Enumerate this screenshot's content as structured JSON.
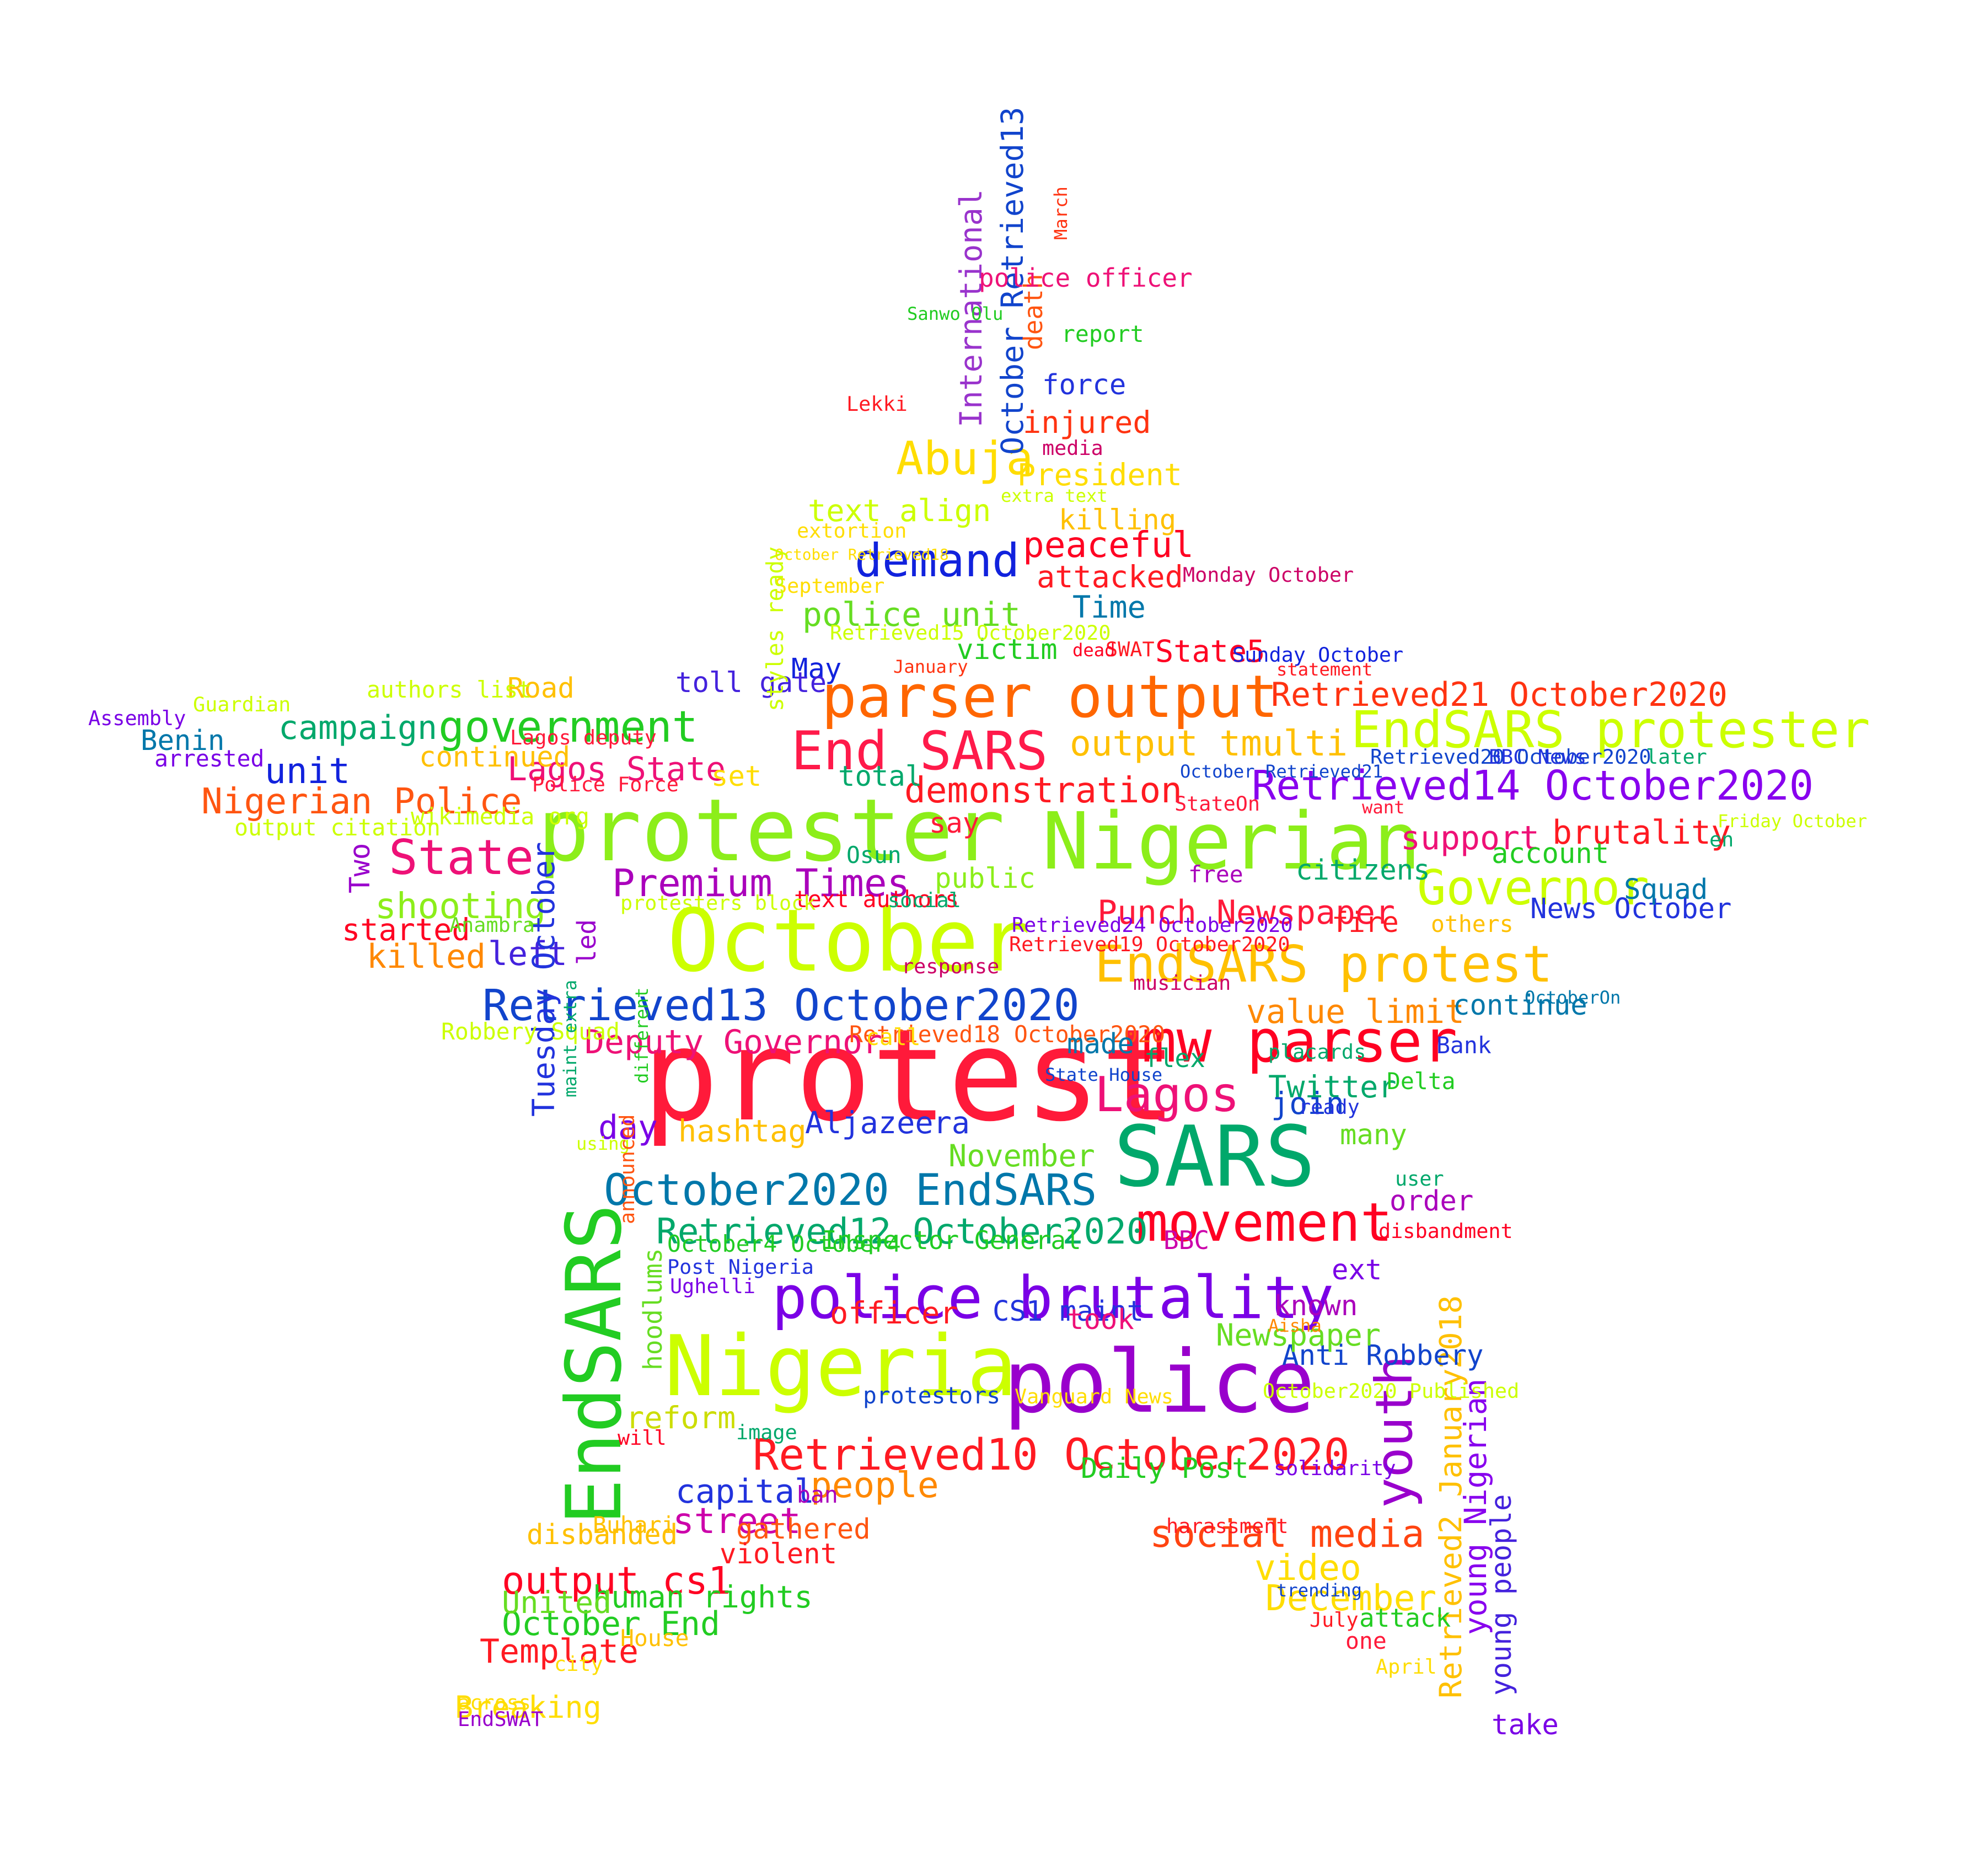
{
  "words": [
    {
      "text": "protest",
      "color": "#ff1a3a"
    },
    {
      "text": "protester",
      "color": "#8cee1a"
    },
    {
      "text": "October",
      "color": "#ccff00"
    },
    {
      "text": "Nigerian",
      "color": "#8cee1a"
    },
    {
      "text": "SARS",
      "color": "#00a86b"
    },
    {
      "text": "Nigeria",
      "color": "#ccff00"
    },
    {
      "text": "police",
      "color": "#9900cc"
    },
    {
      "text": "EndSARS",
      "color": "#22cc22"
    },
    {
      "text": "parser output",
      "color": "#ff6600"
    },
    {
      "text": "mw parser",
      "color": "#ff0022"
    },
    {
      "text": "police brutality",
      "color": "#7a00e6"
    },
    {
      "text": "End SARS",
      "color": "#ff1a4a"
    },
    {
      "text": "EndSARS protester",
      "color": "#ccff00"
    },
    {
      "text": "EndSARS protest",
      "color": "#ffc000"
    },
    {
      "text": "movement",
      "color": "#ff0022"
    },
    {
      "text": "Retrieved13 October2020",
      "color": "#1144cc"
    },
    {
      "text": "Retrieved10 October2020",
      "color": "#ff1a22"
    },
    {
      "text": "Retrieved14 October2020",
      "color": "#8800ee"
    },
    {
      "text": "government",
      "color": "#22cc22"
    },
    {
      "text": "State",
      "color": "#ee1177"
    },
    {
      "text": "demand",
      "color": "#1122dd"
    },
    {
      "text": "Lagos",
      "color": "#ee1177"
    },
    {
      "text": "Governor",
      "color": "#ccff00"
    },
    {
      "text": "youth",
      "color": "#9900cc"
    },
    {
      "text": "October2020 EndSARS",
      "color": "#0077aa"
    },
    {
      "text": "Retrieved12 October2020",
      "color": "#00a86b"
    },
    {
      "text": "Abuja",
      "color": "#ffdd00"
    },
    {
      "text": "output tmulti",
      "color": "#ffc000"
    },
    {
      "text": "Nigerian Police",
      "color": "#ff5511"
    },
    {
      "text": "Premium Times",
      "color": "#aa00bb"
    },
    {
      "text": "Punch Newspaper",
      "color": "#ff1a3a"
    },
    {
      "text": "output cs1",
      "color": "#ff0022"
    },
    {
      "text": "people",
      "color": "#ff8800"
    },
    {
      "text": "capital",
      "color": "#2233dd"
    },
    {
      "text": "street",
      "color": "#cc00aa"
    },
    {
      "text": "social media",
      "color": "#ff4411"
    },
    {
      "text": "video",
      "color": "#ffdd00"
    },
    {
      "text": "December",
      "color": "#ffdd00"
    },
    {
      "text": "Retrieved2 January2018",
      "color": "#ffc000"
    },
    {
      "text": "young Nigerian",
      "color": "#8800ee"
    },
    {
      "text": "young people",
      "color": "#4422dd"
    },
    {
      "text": "Retrieved21 October2020",
      "color": "#ff3311"
    },
    {
      "text": "demonstration",
      "color": "#ff1a22"
    },
    {
      "text": "brutality",
      "color": "#ff1a22"
    },
    {
      "text": "support",
      "color": "#ee1177"
    },
    {
      "text": "shooting",
      "color": "#8cee1a"
    },
    {
      "text": "campaign",
      "color": "#00a86b"
    },
    {
      "text": "unit",
      "color": "#1122dd"
    },
    {
      "text": "Lagos State",
      "color": "#ee1177"
    },
    {
      "text": "peaceful",
      "color": "#ff0022"
    },
    {
      "text": "attacked",
      "color": "#ff1a22"
    },
    {
      "text": "police unit",
      "color": "#66dd22"
    },
    {
      "text": "text align",
      "color": "#ccff00"
    },
    {
      "text": "International",
      "color": "#9933cc"
    },
    {
      "text": "October Retrieved13",
      "color": "#1144cc"
    },
    {
      "text": "Deputy Governor",
      "color": "#ee1177"
    },
    {
      "text": "Retrieved18 October2020",
      "color": "#ff5511"
    },
    {
      "text": "value limit",
      "color": "#ff8800"
    },
    {
      "text": "Twitter",
      "color": "#00a86b"
    },
    {
      "text": "hashtag",
      "color": "#ffc000"
    },
    {
      "text": "Aljazeera",
      "color": "#2233dd"
    },
    {
      "text": "November",
      "color": "#66dd22"
    },
    {
      "text": "day",
      "color": "#7a00e6"
    },
    {
      "text": "killed",
      "color": "#ff8800"
    },
    {
      "text": "left",
      "color": "#4422dd"
    },
    {
      "text": "started",
      "color": "#ff0022"
    },
    {
      "text": "Template",
      "color": "#ff1a22"
    },
    {
      "text": "October End",
      "color": "#22cc22"
    },
    {
      "text": "human rights",
      "color": "#22cc22"
    },
    {
      "text": "United",
      "color": "#66dd22"
    },
    {
      "text": "Breaking",
      "color": "#ffdd00"
    },
    {
      "text": "reform",
      "color": "#ccdd00"
    },
    {
      "text": "hoodlums",
      "color": "#66dd22"
    },
    {
      "text": "Tuesday October",
      "color": "#2233dd"
    },
    {
      "text": "Time",
      "color": "#0077aa"
    },
    {
      "text": "killing",
      "color": "#ffc000"
    },
    {
      "text": "President",
      "color": "#ffdd00"
    },
    {
      "text": "injured",
      "color": "#ff3311"
    },
    {
      "text": "force",
      "color": "#2233dd"
    },
    {
      "text": "report",
      "color": "#22cc22"
    },
    {
      "text": "death",
      "color": "#ff5511"
    },
    {
      "text": "police officer",
      "color": "#ee1177"
    },
    {
      "text": "May",
      "color": "#1122dd"
    },
    {
      "text": "victim",
      "color": "#22cc22"
    },
    {
      "text": "State5",
      "color": "#ff0022"
    },
    {
      "text": "Road",
      "color": "#ffc000"
    },
    {
      "text": "toll gate",
      "color": "#4422dd"
    },
    {
      "text": "Benin",
      "color": "#0077aa"
    },
    {
      "text": "continued",
      "color": "#ffc000"
    },
    {
      "text": "Two",
      "color": "#9900cc"
    },
    {
      "text": "set",
      "color": "#ffdd00"
    },
    {
      "text": "total",
      "color": "#00a86b"
    },
    {
      "text": "say",
      "color": "#ff1a3a"
    },
    {
      "text": "public",
      "color": "#8cee1a"
    },
    {
      "text": "citizens",
      "color": "#00a86b"
    },
    {
      "text": "account",
      "color": "#22cc22"
    },
    {
      "text": "News October",
      "color": "#2233dd"
    },
    {
      "text": "Squad",
      "color": "#0077aa"
    },
    {
      "text": "fire",
      "color": "#ff1a22"
    },
    {
      "text": "others",
      "color": "#ffc000"
    },
    {
      "text": "continue",
      "color": "#0077aa"
    },
    {
      "text": "Bank",
      "color": "#2233dd"
    },
    {
      "text": "Delta",
      "color": "#22cc22"
    },
    {
      "text": "made",
      "color": "#0077aa"
    },
    {
      "text": "join",
      "color": "#1144cc"
    },
    {
      "text": "many",
      "color": "#66dd22"
    },
    {
      "text": "ready",
      "color": "#2233dd"
    },
    {
      "text": "Anti Robbery",
      "color": "#1144cc"
    },
    {
      "text": "Newspaper",
      "color": "#66dd22"
    },
    {
      "text": "known",
      "color": "#aa00bb"
    },
    {
      "text": "CS1 maint",
      "color": "#2233dd"
    },
    {
      "text": "took",
      "color": "#ee1177"
    },
    {
      "text": "officer",
      "color": "#ff1a22"
    },
    {
      "text": "ext",
      "color": "#7a00e6"
    },
    {
      "text": "order",
      "color": "#aa00bb"
    },
    {
      "text": "user",
      "color": "#00a86b"
    },
    {
      "text": "BBC",
      "color": "#cc00aa"
    },
    {
      "text": "Inspector General",
      "color": "#22cc22"
    },
    {
      "text": "October4 October4",
      "color": "#22cc22"
    },
    {
      "text": "Post Nigeria",
      "color": "#2233dd"
    },
    {
      "text": "Ughelli",
      "color": "#7a00e6"
    },
    {
      "text": "gathered",
      "color": "#ff5511"
    },
    {
      "text": "violent",
      "color": "#ff1a22"
    },
    {
      "text": "Buhari",
      "color": "#ffc000"
    },
    {
      "text": "disbanded",
      "color": "#ffc000"
    },
    {
      "text": "ban",
      "color": "#aa00bb"
    },
    {
      "text": "Daily Post",
      "color": "#22cc22"
    },
    {
      "text": "protestors",
      "color": "#1144cc"
    },
    {
      "text": "attack",
      "color": "#22cc22"
    },
    {
      "text": "take",
      "color": "#7a00e6"
    },
    {
      "text": "House",
      "color": "#ffc000"
    },
    {
      "text": "Lekki",
      "color": "#ff1a22"
    },
    {
      "text": "Sanwo Olu",
      "color": "#22cc22"
    },
    {
      "text": "March",
      "color": "#ff3311"
    },
    {
      "text": "media",
      "color": "#cc0066"
    },
    {
      "text": "extra text",
      "color": "#ccff00"
    },
    {
      "text": "extortion",
      "color": "#ffdd00"
    },
    {
      "text": "October Retrieved18",
      "color": "#ffdd00"
    },
    {
      "text": "September",
      "color": "#ffdd00"
    },
    {
      "text": "Retrieved15 October2020",
      "color": "#ccff00"
    },
    {
      "text": "styles ready",
      "color": "#ccff00"
    },
    {
      "text": "Monday October",
      "color": "#cc0066"
    },
    {
      "text": "SWAT",
      "color": "#ff1a22"
    },
    {
      "text": "dead",
      "color": "#ff0022"
    },
    {
      "text": "January",
      "color": "#ff3311"
    },
    {
      "text": "Sunday October",
      "color": "#1122dd"
    },
    {
      "text": "statement",
      "color": "#ff1a22"
    },
    {
      "text": "Retrieved20 October2020",
      "color": "#1144cc"
    },
    {
      "text": "BBC News",
      "color": "#2233dd"
    },
    {
      "text": "later",
      "color": "#00a86b"
    },
    {
      "text": "October Retrieved21",
      "color": "#1144cc"
    },
    {
      "text": "StateOn",
      "color": "#ff1a3a"
    },
    {
      "text": "want",
      "color": "#ff1a3a"
    },
    {
      "text": "Friday October",
      "color": "#ccff00"
    },
    {
      "text": "en",
      "color": "#00a86b"
    },
    {
      "text": "free",
      "color": "#aa00bb"
    },
    {
      "text": "Osun",
      "color": "#00a86b"
    },
    {
      "text": "text authors",
      "color": "#ff0022"
    },
    {
      "text": "social",
      "color": "#00a86b"
    },
    {
      "text": "protesters block",
      "color": "#ccff00"
    },
    {
      "text": "led",
      "color": "#9900cc"
    },
    {
      "text": "Anambra",
      "color": "#66dd22"
    },
    {
      "text": "wikimedia org",
      "color": "#ccff00"
    },
    {
      "text": "Police Force",
      "color": "#ff1a3a"
    },
    {
      "text": "output citation",
      "color": "#ccff00"
    },
    {
      "text": "arrested",
      "color": "#7a00e6"
    },
    {
      "text": "Assembly",
      "color": "#7a00e6"
    },
    {
      "text": "Guardian",
      "color": "#ccff00"
    },
    {
      "text": "authors list",
      "color": "#ccff00"
    },
    {
      "text": "Lagos deputy",
      "color": "#ff1a3a"
    },
    {
      "text": "Retrieved24 October2020",
      "color": "#7a00e6"
    },
    {
      "text": "Retrieved19 October2020",
      "color": "#ff1a22"
    },
    {
      "text": "response",
      "color": "#cc0066"
    },
    {
      "text": "musician",
      "color": "#cc0066"
    },
    {
      "text": "OctoberOn",
      "color": "#0077aa"
    },
    {
      "text": "call",
      "color": "#ffdd00"
    },
    {
      "text": "Robbery Squad",
      "color": "#ccff00"
    },
    {
      "text": "maint extra",
      "color": "#00a86b"
    },
    {
      "text": "different",
      "color": "#22cc22"
    },
    {
      "text": "using",
      "color": "#ccff00"
    },
    {
      "text": "State House",
      "color": "#1144cc"
    },
    {
      "text": "flex",
      "color": "#00a86b"
    },
    {
      "text": "placards",
      "color": "#00a86b"
    },
    {
      "text": "announced",
      "color": "#ff5511"
    },
    {
      "text": "disbandment",
      "color": "#ff0022"
    },
    {
      "text": "Aisha",
      "color": "#ff8800"
    },
    {
      "text": "Vanguard News",
      "color": "#ffdd00"
    },
    {
      "text": "October2020 Published",
      "color": "#ccff00"
    },
    {
      "text": "solidarity",
      "color": "#7a00e6"
    },
    {
      "text": "harassment",
      "color": "#ff1a22"
    },
    {
      "text": "trending",
      "color": "#1144cc"
    },
    {
      "text": "July",
      "color": "#ff1a22"
    },
    {
      "text": "one",
      "color": "#ff1a3a"
    },
    {
      "text": "April",
      "color": "#ffdd00"
    },
    {
      "text": "will",
      "color": "#ff0022"
    },
    {
      "text": "image",
      "color": "#00a86b"
    },
    {
      "text": "city",
      "color": "#ffdd00"
    },
    {
      "text": "across",
      "color": "#ffdd00"
    },
    {
      "text": "EndSWAT",
      "color": "#9900cc"
    },
    {
      "text": "Ogun",
      "color": "#cc00aa"
    }
  ]
}
